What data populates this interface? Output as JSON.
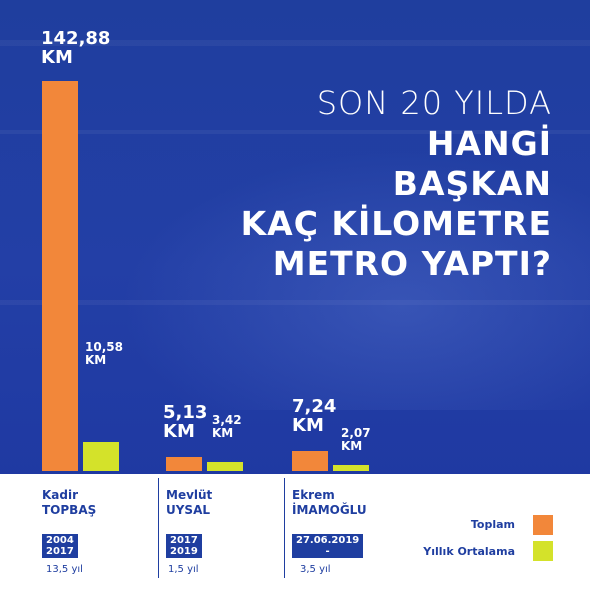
{
  "title": {
    "line1": "SON 20 YILDA",
    "line2": "HANGİ",
    "line3": "BAŞKAN",
    "line4": "KAÇ KİLOMETRE",
    "line5": "METRO YAPTI?"
  },
  "colors": {
    "background": "#1f3e9e",
    "toplam": "#f2873a",
    "yillik": "#d4e22a",
    "text_blue": "#1f3ea0"
  },
  "chart_data": {
    "type": "bar",
    "categories": [
      "Kadir TOPBAŞ",
      "Mevlüt UYSAL",
      "Ekrem İMAMOĞLU"
    ],
    "series": [
      {
        "name": "Toplam",
        "values": [
          142.88,
          5.13,
          7.24
        ]
      },
      {
        "name": "Yıllık Ortalama",
        "values": [
          10.58,
          3.42,
          2.07
        ]
      }
    ],
    "unit": "KM",
    "ylim": [
      0,
      142.88
    ],
    "legend_position": "bottom-right",
    "grid": false
  },
  "labels": {
    "g0_total": "142,88\nKM",
    "g0_avg": "10,58\nKM",
    "g1_total": "5,13\nKM",
    "g1_avg": "3,42\nKM",
    "g2_total": "7,24\nKM",
    "g2_avg": "2,07\nKM"
  },
  "people": [
    {
      "first": "Kadir",
      "last": "TOPBAŞ",
      "period_start": "2004",
      "period_end": "2017",
      "duration": "13,5 yıl"
    },
    {
      "first": "Mevlüt",
      "last": "UYSAL",
      "period_start": "2017",
      "period_end": "2019",
      "duration": "1,5 yıl"
    },
    {
      "first": "Ekrem",
      "last": "İMAMOĞLU",
      "period_start": "27.06.2019",
      "period_end": "-",
      "duration": "3,5 yıl"
    }
  ],
  "legend": {
    "toplam": "Toplam",
    "yillik": "Yıllık Ortalama"
  }
}
